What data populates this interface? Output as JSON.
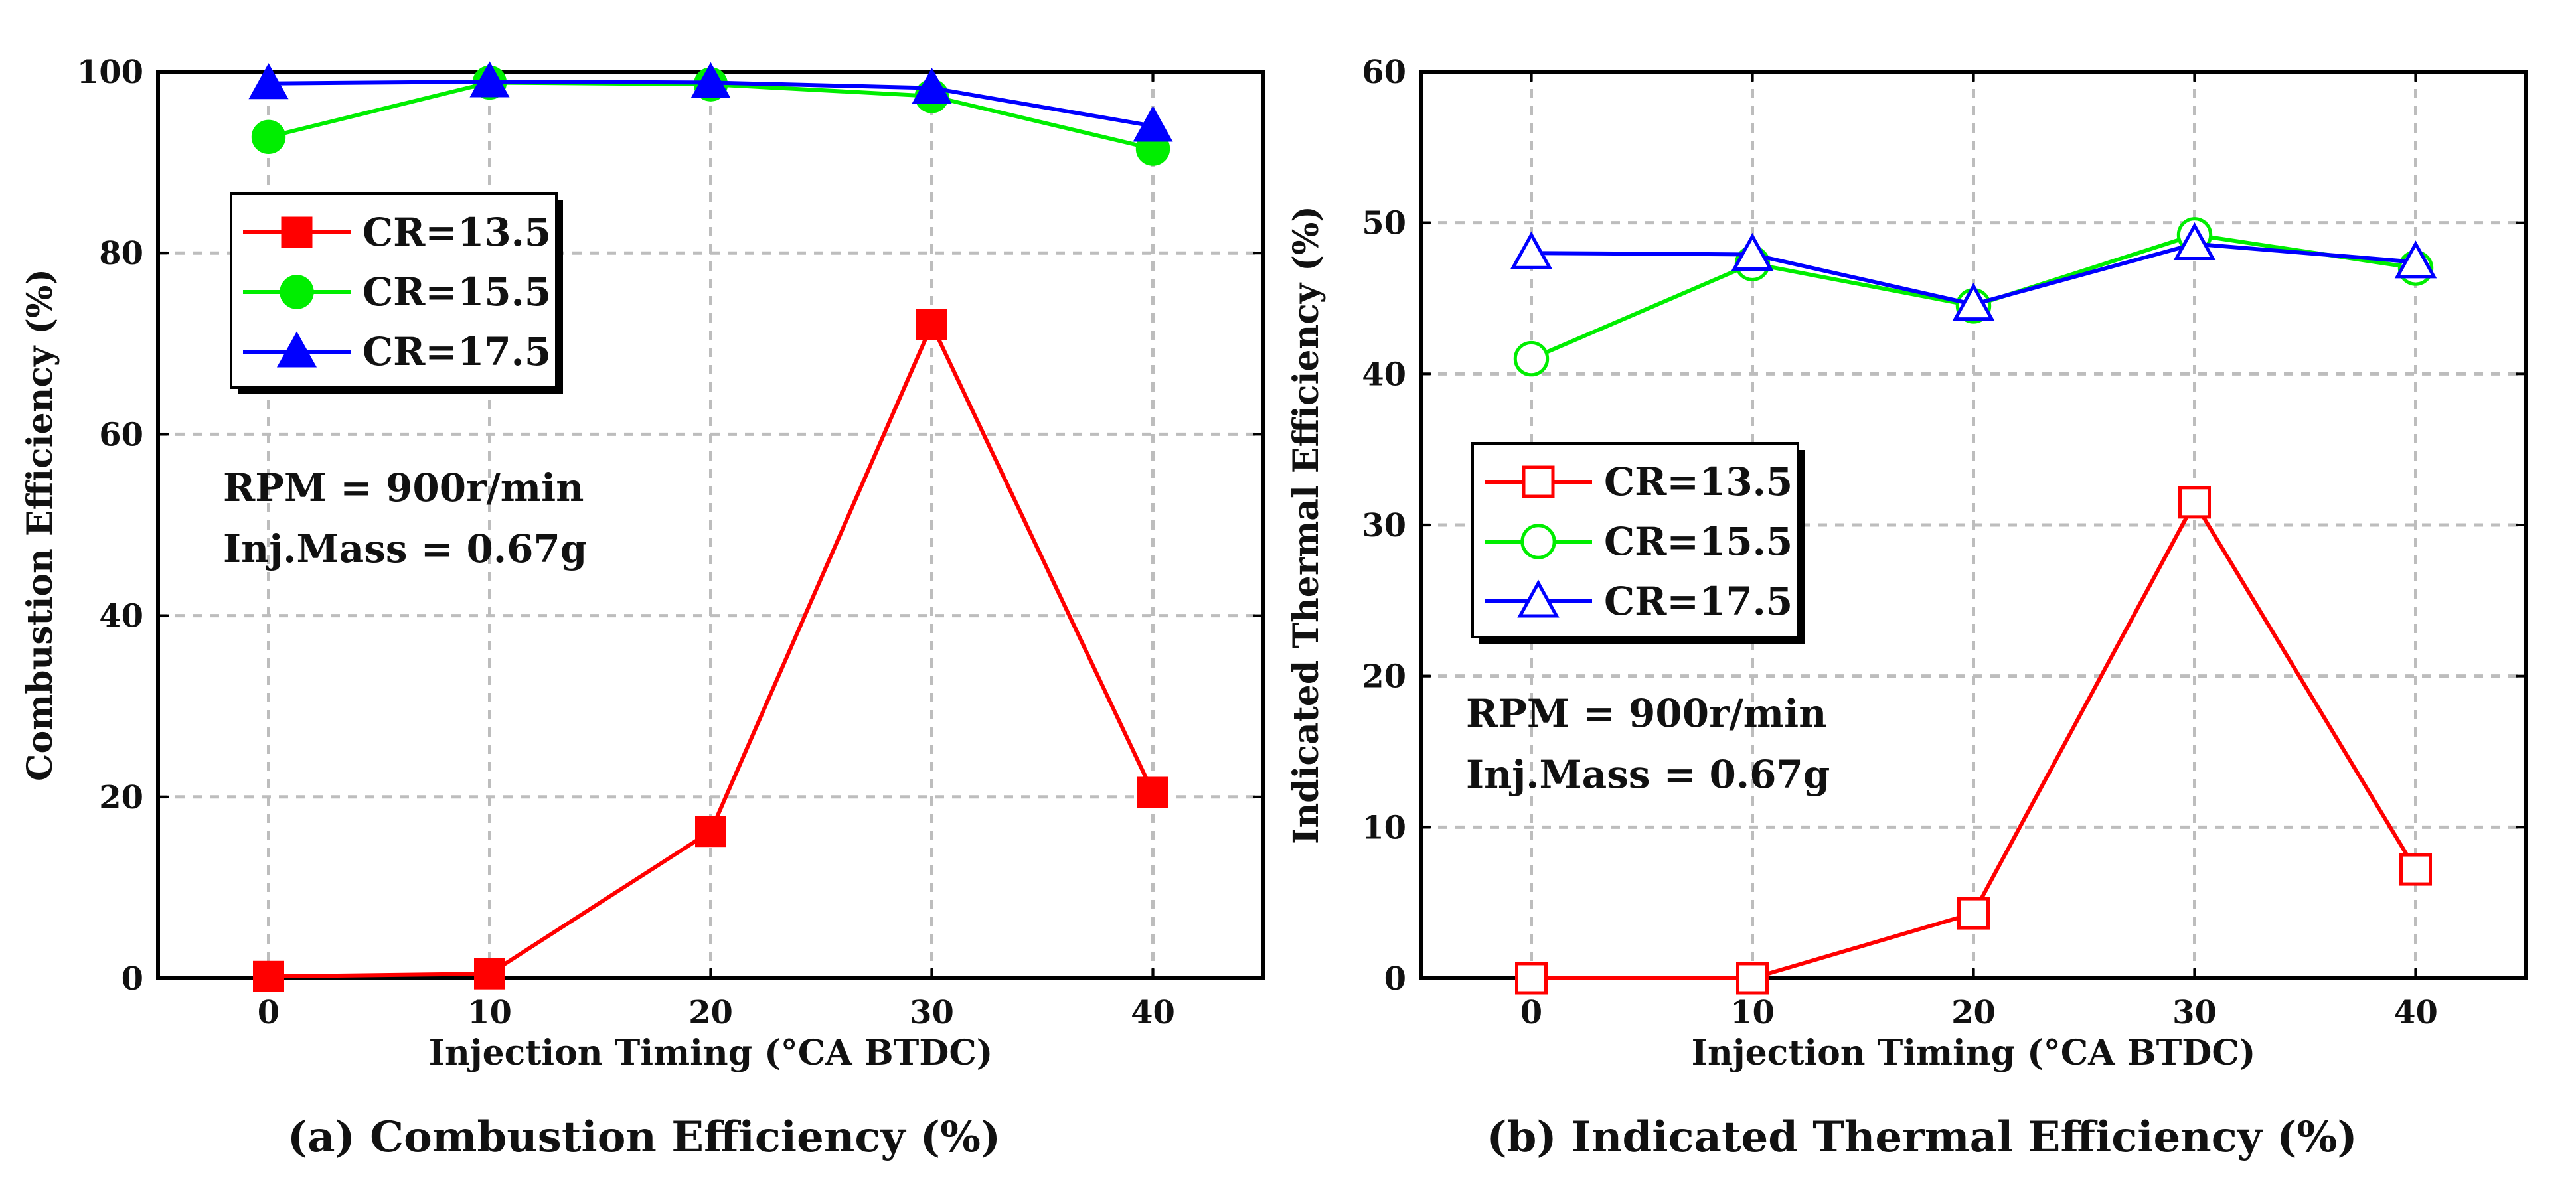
{
  "chart_data": [
    {
      "id": "a",
      "type": "line",
      "title": "",
      "caption": "(a) Combustion Efficiency (%)",
      "xlabel": "Injection Timing (°CA BTDC)",
      "ylabel": "Combustion Efficiency (%)",
      "x": [
        0,
        10,
        20,
        30,
        40
      ],
      "xlim": [
        -5,
        45
      ],
      "xticks": [
        0,
        10,
        20,
        30,
        40
      ],
      "ylim": [
        0,
        100
      ],
      "yticks": [
        0,
        20,
        40,
        60,
        80,
        100
      ],
      "grid": true,
      "marker_fill": "filled",
      "legend_position": "upper-left",
      "series": [
        {
          "name": "CR=13.5",
          "color": "#ff0000",
          "marker": "square",
          "values": [
            0.2,
            0.5,
            16.2,
            72.1,
            20.5
          ]
        },
        {
          "name": "CR=15.5",
          "color": "#00ee00",
          "marker": "circle",
          "values": [
            92.8,
            98.8,
            98.6,
            97.3,
            91.5
          ]
        },
        {
          "name": "CR=17.5",
          "color": "#0000ff",
          "marker": "triangle",
          "values": [
            98.7,
            98.9,
            98.8,
            98.2,
            94.0
          ]
        }
      ],
      "annotations": [
        "RPM = 900r/min",
        "Inj.Mass = 0.67g"
      ]
    },
    {
      "id": "b",
      "type": "line",
      "title": "",
      "caption": "(b) Indicated Thermal Efficiency (%)",
      "xlabel": "Injection Timing (°CA BTDC)",
      "ylabel": "Indicated Thermal Efficiency (%)",
      "x": [
        0,
        10,
        20,
        30,
        40
      ],
      "xlim": [
        -5,
        45
      ],
      "xticks": [
        0,
        10,
        20,
        30,
        40
      ],
      "ylim": [
        0,
        60
      ],
      "yticks": [
        0,
        10,
        20,
        30,
        40,
        50,
        60
      ],
      "grid": true,
      "marker_fill": "hollow",
      "legend_position": "middle-left",
      "series": [
        {
          "name": "CR=13.5",
          "color": "#ff0000",
          "marker": "square",
          "values": [
            0.0,
            0.0,
            4.3,
            31.5,
            7.2
          ]
        },
        {
          "name": "CR=15.5",
          "color": "#00ee00",
          "marker": "circle",
          "values": [
            41.0,
            47.3,
            44.5,
            49.2,
            47.0
          ]
        },
        {
          "name": "CR=17.5",
          "color": "#0000ff",
          "marker": "triangle",
          "values": [
            48.0,
            47.9,
            44.6,
            48.6,
            47.4
          ]
        }
      ],
      "annotations": [
        "RPM = 900r/min",
        "Inj.Mass = 0.67g"
      ]
    }
  ]
}
